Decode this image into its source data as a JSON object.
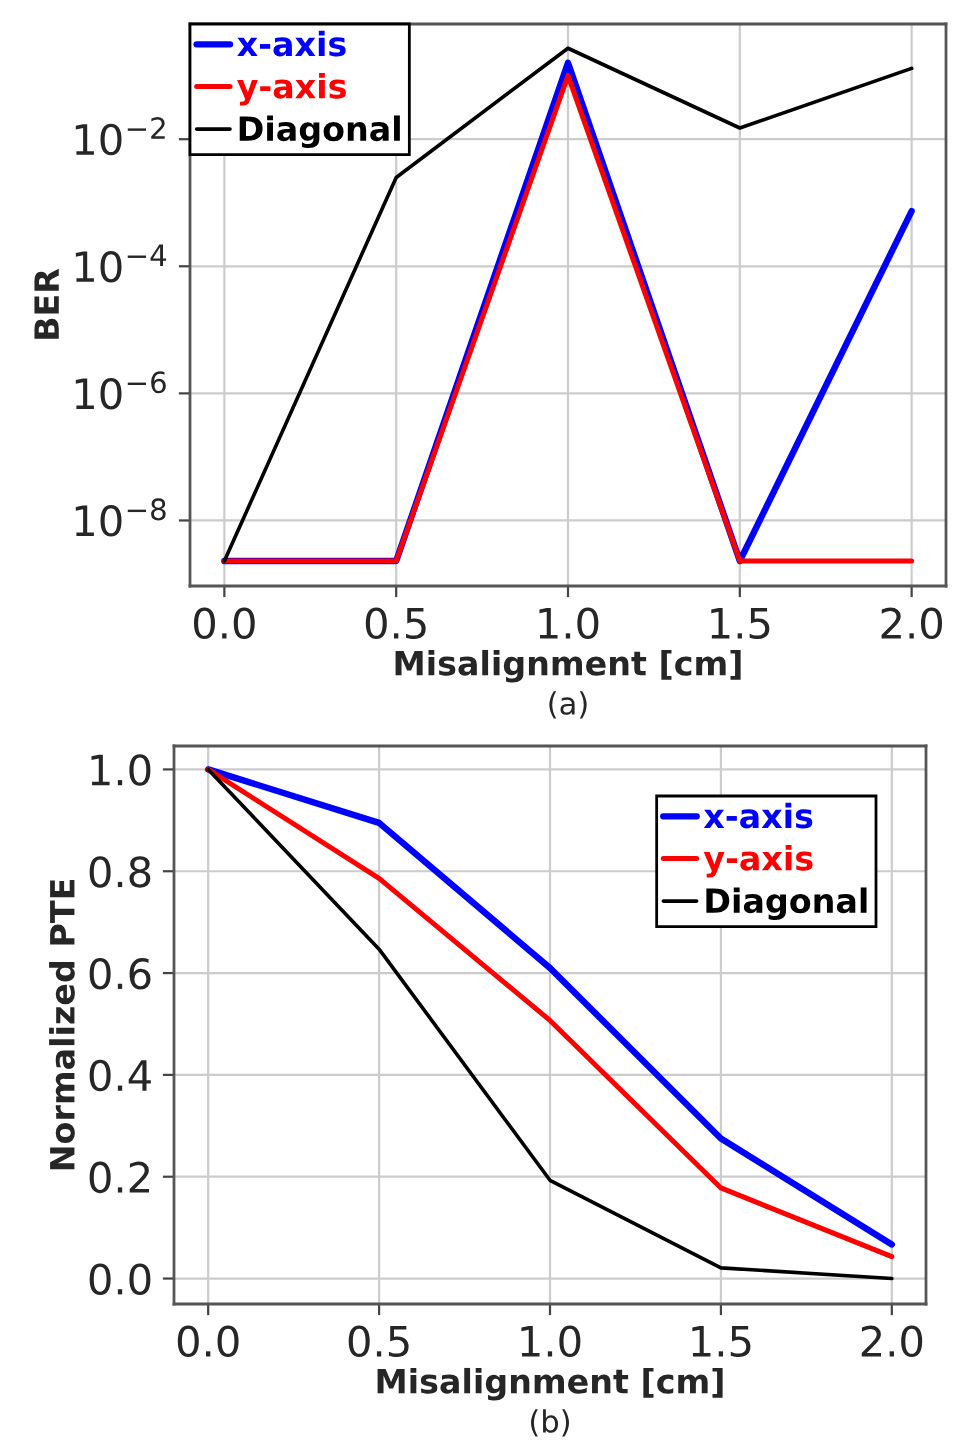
{
  "chart_data": [
    {
      "type": "line",
      "xlabel": "Misalignment [cm]",
      "ylabel": "BER",
      "annotations": [
        "(a)"
      ],
      "log": "y",
      "grid": true,
      "legend": "top left",
      "x": [
        0.0,
        0.5,
        1.0,
        1.5,
        2.0
      ],
      "xlim": [
        -0.1,
        2.1
      ],
      "xticks": [
        {
          "value": 0,
          "label": "0.0"
        },
        {
          "value": 0.5,
          "label": "0.5"
        },
        {
          "value": 1,
          "label": "1.0"
        },
        {
          "value": 1.5,
          "label": "1.5"
        },
        {
          "value": 2,
          "label": "2.0"
        }
      ],
      "ylim": [
        9.3e-10,
        0.65
      ],
      "yticks": [
        {
          "value": 1e-08,
          "label": "10$^{−8}$"
        },
        {
          "value": 1e-06,
          "label": "10$^{−6}$"
        },
        {
          "value": 0.0001,
          "label": "10$^{−4}$"
        },
        {
          "value": 0.01,
          "label": "10$^{−2}$"
        }
      ],
      "series": [
        {
          "name": "x-axis",
          "color": "#0000ff",
          "values": [
            2.3e-09,
            2.3e-09,
            0.16,
            2.3e-09,
            0.00074
          ]
        },
        {
          "name": "y-axis",
          "color": "#ff0000",
          "values": [
            2.3e-09,
            2.3e-09,
            0.1,
            2.3e-09,
            2.3e-09
          ]
        },
        {
          "name": "Diagonal",
          "color": "#000000",
          "values": [
            2.3e-09,
            0.0025,
            0.27,
            0.015,
            0.13
          ]
        }
      ]
    },
    {
      "type": "line",
      "xlabel": "Misalignment [cm]",
      "ylabel": "Normalized PTE",
      "annotations": [
        "(b)"
      ],
      "grid": true,
      "legend": "top right",
      "x": [
        0.0,
        0.5,
        1.0,
        1.5,
        2.0
      ],
      "xlim": [
        -0.1,
        2.1
      ],
      "xticks": [
        {
          "value": 0,
          "label": "0.0"
        },
        {
          "value": 0.5,
          "label": "0.5"
        },
        {
          "value": 1,
          "label": "1.0"
        },
        {
          "value": 1.5,
          "label": "1.5"
        },
        {
          "value": 2,
          "label": "2.0"
        }
      ],
      "ylim": [
        -0.05,
        1.046
      ],
      "yticks": [
        {
          "value": 0,
          "label": "0.0"
        },
        0.2,
        0.4,
        0.6,
        0.8,
        {
          "value": 1,
          "label": "1.0"
        }
      ],
      "series": [
        {
          "name": "x-axis",
          "color": "#0000ff",
          "values": [
            1.0,
            0.895,
            0.61,
            0.275,
            0.067
          ]
        },
        {
          "name": "y-axis",
          "color": "#ff0000",
          "values": [
            1.0,
            0.786,
            0.507,
            0.178,
            0.043
          ]
        },
        {
          "name": "Diagonal",
          "color": "#000000",
          "values": [
            1.0,
            0.647,
            0.193,
            0.021,
            0.0
          ]
        }
      ]
    }
  ]
}
